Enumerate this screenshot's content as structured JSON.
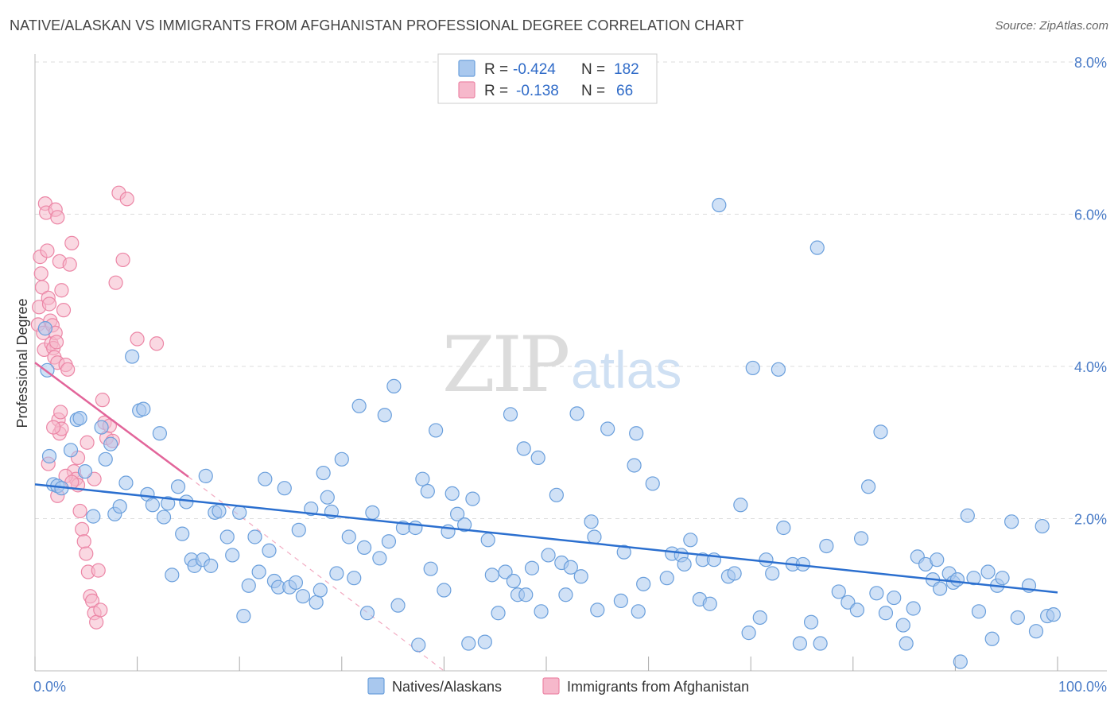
{
  "header": {
    "title": "NATIVE/ALASKAN VS IMMIGRANTS FROM AFGHANISTAN PROFESSIONAL DEGREE CORRELATION CHART",
    "source": "Source: ZipAtlas.com"
  },
  "watermark": {
    "zip": "ZIP",
    "atlas": "atlas"
  },
  "legend_top": {
    "rows": [
      {
        "r_label": "R =",
        "r_value": "-0.424",
        "n_label": "N =",
        "n_value": "182"
      },
      {
        "r_label": "R =",
        "r_value": "-0.138",
        "n_label": "N =",
        "n_value": "66"
      }
    ]
  },
  "legend_bottom": {
    "series_a": "Natives/Alaskans",
    "series_b": "Immigrants from Afghanistan"
  },
  "colors": {
    "blue_fill": "#a9c8ee",
    "blue_stroke": "#6a9fdc",
    "blue_line": "#2b6fcf",
    "pink_fill": "#f6b8cb",
    "pink_stroke": "#ec86a6",
    "pink_line": "#e2659a",
    "grid": "#dddddd",
    "tick_label": "#4a7cc8"
  },
  "chart_data": {
    "type": "scatter",
    "title": "NATIVE/ALASKAN VS IMMIGRANTS FROM AFGHANISTAN PROFESSIONAL DEGREE CORRELATION CHART",
    "xlabel": "",
    "ylabel": "Professional Degree",
    "xlim": [
      0,
      100
    ],
    "ylim": [
      0,
      8.0
    ],
    "x_tick_labels": [
      "0.0%",
      "100.0%"
    ],
    "y_ticks": [
      2.0,
      4.0,
      6.0,
      8.0
    ],
    "y_tick_labels": [
      "2.0%",
      "4.0%",
      "6.0%",
      "8.0%"
    ],
    "grid": true,
    "series": [
      {
        "name": "Natives/Alaskans",
        "R": -0.424,
        "N": 182,
        "trend": {
          "x": [
            0,
            100
          ],
          "y": [
            2.45,
            1.03
          ]
        },
        "points": [
          [
            1.0,
            4.5
          ],
          [
            1.2,
            3.95
          ],
          [
            1.4,
            2.82
          ],
          [
            1.8,
            2.45
          ],
          [
            2.2,
            2.43
          ],
          [
            2.6,
            2.4
          ],
          [
            3.5,
            2.9
          ],
          [
            4.1,
            3.3
          ],
          [
            4.4,
            3.32
          ],
          [
            4.9,
            2.62
          ],
          [
            5.7,
            2.03
          ],
          [
            6.5,
            3.2
          ],
          [
            6.9,
            2.78
          ],
          [
            7.4,
            2.98
          ],
          [
            7.8,
            2.06
          ],
          [
            8.3,
            2.16
          ],
          [
            8.9,
            2.47
          ],
          [
            9.5,
            4.13
          ],
          [
            10.2,
            3.42
          ],
          [
            10.6,
            3.44
          ],
          [
            11.0,
            2.32
          ],
          [
            11.5,
            2.18
          ],
          [
            12.2,
            3.12
          ],
          [
            12.6,
            2.02
          ],
          [
            13.0,
            2.2
          ],
          [
            13.4,
            1.26
          ],
          [
            14.0,
            2.42
          ],
          [
            14.4,
            1.8
          ],
          [
            14.8,
            2.22
          ],
          [
            15.3,
            1.46
          ],
          [
            15.6,
            1.38
          ],
          [
            16.4,
            1.46
          ],
          [
            16.7,
            2.56
          ],
          [
            17.2,
            1.38
          ],
          [
            17.6,
            2.08
          ],
          [
            18.0,
            2.1
          ],
          [
            18.8,
            1.76
          ],
          [
            19.3,
            1.52
          ],
          [
            20.0,
            2.08
          ],
          [
            20.4,
            0.72
          ],
          [
            20.9,
            1.12
          ],
          [
            21.5,
            1.76
          ],
          [
            21.9,
            1.3
          ],
          [
            22.5,
            2.52
          ],
          [
            22.9,
            1.58
          ],
          [
            23.4,
            1.18
          ],
          [
            23.8,
            1.1
          ],
          [
            24.4,
            2.4
          ],
          [
            24.9,
            1.1
          ],
          [
            25.5,
            1.16
          ],
          [
            25.8,
            1.85
          ],
          [
            26.2,
            0.98
          ],
          [
            27.0,
            2.13
          ],
          [
            27.5,
            0.9
          ],
          [
            27.9,
            1.06
          ],
          [
            28.2,
            2.6
          ],
          [
            28.6,
            2.28
          ],
          [
            29.0,
            2.09
          ],
          [
            29.5,
            1.28
          ],
          [
            30.0,
            2.78
          ],
          [
            30.7,
            1.76
          ],
          [
            31.2,
            1.22
          ],
          [
            31.7,
            3.48
          ],
          [
            32.2,
            1.62
          ],
          [
            32.5,
            0.76
          ],
          [
            33.0,
            2.08
          ],
          [
            33.7,
            1.48
          ],
          [
            34.2,
            3.36
          ],
          [
            34.6,
            1.7
          ],
          [
            35.1,
            3.74
          ],
          [
            35.5,
            0.86
          ],
          [
            36.0,
            1.88
          ],
          [
            37.2,
            1.88
          ],
          [
            37.5,
            0.34
          ],
          [
            37.9,
            2.52
          ],
          [
            38.4,
            2.36
          ],
          [
            38.7,
            1.34
          ],
          [
            39.2,
            3.16
          ],
          [
            40.0,
            1.06
          ],
          [
            40.4,
            1.83
          ],
          [
            40.8,
            2.33
          ],
          [
            41.3,
            2.06
          ],
          [
            42.0,
            1.92
          ],
          [
            42.4,
            0.36
          ],
          [
            42.8,
            2.26
          ],
          [
            44.0,
            0.38
          ],
          [
            44.3,
            1.72
          ],
          [
            44.7,
            1.26
          ],
          [
            45.3,
            0.76
          ],
          [
            46.0,
            1.3
          ],
          [
            46.5,
            3.37
          ],
          [
            46.8,
            1.18
          ],
          [
            47.2,
            1.0
          ],
          [
            47.8,
            2.92
          ],
          [
            48.0,
            1.0
          ],
          [
            48.6,
            1.35
          ],
          [
            49.2,
            2.8
          ],
          [
            49.5,
            0.78
          ],
          [
            50.2,
            1.52
          ],
          [
            51.0,
            2.31
          ],
          [
            51.5,
            1.42
          ],
          [
            51.9,
            1.0
          ],
          [
            52.4,
            1.36
          ],
          [
            53.0,
            3.38
          ],
          [
            53.4,
            1.24
          ],
          [
            54.4,
            1.96
          ],
          [
            54.7,
            1.76
          ],
          [
            55.0,
            0.8
          ],
          [
            56.0,
            3.18
          ],
          [
            57.3,
            0.92
          ],
          [
            57.6,
            1.56
          ],
          [
            58.6,
            2.7
          ],
          [
            58.8,
            3.12
          ],
          [
            59.0,
            0.78
          ],
          [
            59.5,
            1.14
          ],
          [
            60.4,
            2.46
          ],
          [
            61.8,
            1.22
          ],
          [
            62.3,
            1.54
          ],
          [
            63.2,
            1.52
          ],
          [
            63.5,
            1.4
          ],
          [
            64.1,
            1.72
          ],
          [
            65.0,
            0.94
          ],
          [
            65.3,
            1.46
          ],
          [
            66.0,
            0.88
          ],
          [
            66.4,
            1.46
          ],
          [
            66.9,
            6.12
          ],
          [
            67.8,
            1.24
          ],
          [
            68.4,
            1.28
          ],
          [
            69.0,
            2.18
          ],
          [
            69.8,
            0.5
          ],
          [
            70.2,
            3.98
          ],
          [
            70.9,
            0.7
          ],
          [
            71.5,
            1.46
          ],
          [
            72.1,
            1.28
          ],
          [
            72.7,
            3.96
          ],
          [
            73.2,
            1.88
          ],
          [
            74.1,
            1.4
          ],
          [
            74.8,
            0.36
          ],
          [
            75.1,
            1.4
          ],
          [
            75.9,
            0.64
          ],
          [
            76.5,
            5.56
          ],
          [
            76.8,
            0.36
          ],
          [
            77.4,
            1.64
          ],
          [
            78.6,
            1.04
          ],
          [
            79.5,
            0.9
          ],
          [
            80.4,
            0.8
          ],
          [
            80.8,
            1.74
          ],
          [
            81.5,
            2.42
          ],
          [
            82.3,
            1.02
          ],
          [
            82.7,
            3.14
          ],
          [
            83.2,
            0.76
          ],
          [
            84.0,
            0.96
          ],
          [
            84.9,
            0.6
          ],
          [
            85.2,
            0.36
          ],
          [
            85.9,
            0.82
          ],
          [
            86.3,
            1.5
          ],
          [
            87.1,
            1.4
          ],
          [
            87.8,
            1.2
          ],
          [
            88.2,
            1.46
          ],
          [
            88.5,
            1.08
          ],
          [
            89.4,
            1.28
          ],
          [
            89.8,
            1.16
          ],
          [
            90.2,
            1.2
          ],
          [
            90.5,
            0.12
          ],
          [
            91.2,
            2.04
          ],
          [
            91.8,
            1.22
          ],
          [
            92.3,
            0.78
          ],
          [
            93.2,
            1.3
          ],
          [
            93.6,
            0.42
          ],
          [
            94.1,
            1.12
          ],
          [
            94.6,
            1.22
          ],
          [
            95.5,
            1.96
          ],
          [
            96.1,
            0.7
          ],
          [
            97.2,
            1.12
          ],
          [
            97.9,
            0.52
          ],
          [
            98.5,
            1.9
          ],
          [
            99.0,
            0.72
          ],
          [
            99.6,
            0.74
          ]
        ]
      },
      {
        "name": "Immigrants from Afghanistan",
        "R": -0.138,
        "N": 66,
        "trend": {
          "x": [
            0,
            15
          ],
          "y": [
            4.05,
            2.55
          ]
        },
        "trend_extension": {
          "x": [
            15,
            40
          ],
          "y": [
            2.55,
            0.0
          ]
        },
        "points": [
          [
            0.3,
            4.55
          ],
          [
            0.4,
            4.78
          ],
          [
            0.5,
            5.44
          ],
          [
            0.6,
            5.22
          ],
          [
            0.7,
            5.04
          ],
          [
            0.8,
            4.44
          ],
          [
            0.9,
            4.22
          ],
          [
            1.0,
            6.14
          ],
          [
            1.1,
            6.02
          ],
          [
            1.2,
            5.52
          ],
          [
            1.3,
            4.9
          ],
          [
            1.4,
            4.82
          ],
          [
            1.5,
            4.6
          ],
          [
            1.6,
            4.3
          ],
          [
            1.7,
            4.54
          ],
          [
            1.8,
            4.24
          ],
          [
            1.9,
            4.12
          ],
          [
            2.0,
            4.44
          ],
          [
            2.1,
            4.32
          ],
          [
            2.2,
            4.05
          ],
          [
            2.3,
            3.3
          ],
          [
            2.4,
            3.12
          ],
          [
            2.5,
            3.4
          ],
          [
            2.6,
            3.18
          ],
          [
            2.0,
            6.06
          ],
          [
            2.2,
            5.96
          ],
          [
            2.4,
            5.38
          ],
          [
            2.6,
            5.0
          ],
          [
            2.8,
            4.74
          ],
          [
            3.0,
            4.02
          ],
          [
            3.2,
            3.96
          ],
          [
            3.4,
            5.34
          ],
          [
            3.6,
            5.62
          ],
          [
            3.8,
            2.62
          ],
          [
            4.0,
            2.52
          ],
          [
            4.2,
            2.44
          ],
          [
            4.4,
            2.1
          ],
          [
            4.6,
            1.86
          ],
          [
            4.8,
            1.7
          ],
          [
            5.0,
            1.54
          ],
          [
            5.2,
            1.3
          ],
          [
            5.4,
            0.98
          ],
          [
            5.6,
            0.92
          ],
          [
            5.8,
            0.76
          ],
          [
            6.0,
            0.64
          ],
          [
            6.2,
            1.32
          ],
          [
            6.4,
            0.8
          ],
          [
            6.6,
            3.56
          ],
          [
            6.8,
            3.26
          ],
          [
            7.0,
            3.06
          ],
          [
            7.3,
            3.22
          ],
          [
            7.6,
            3.02
          ],
          [
            7.9,
            5.1
          ],
          [
            8.2,
            6.28
          ],
          [
            8.6,
            5.4
          ],
          [
            9.0,
            6.2
          ],
          [
            10.0,
            4.36
          ],
          [
            11.9,
            4.3
          ],
          [
            1.3,
            2.72
          ],
          [
            1.8,
            3.2
          ],
          [
            2.2,
            2.3
          ],
          [
            3.0,
            2.56
          ],
          [
            3.6,
            2.48
          ],
          [
            4.2,
            2.8
          ],
          [
            5.1,
            3.0
          ],
          [
            5.8,
            2.52
          ]
        ]
      }
    ]
  }
}
